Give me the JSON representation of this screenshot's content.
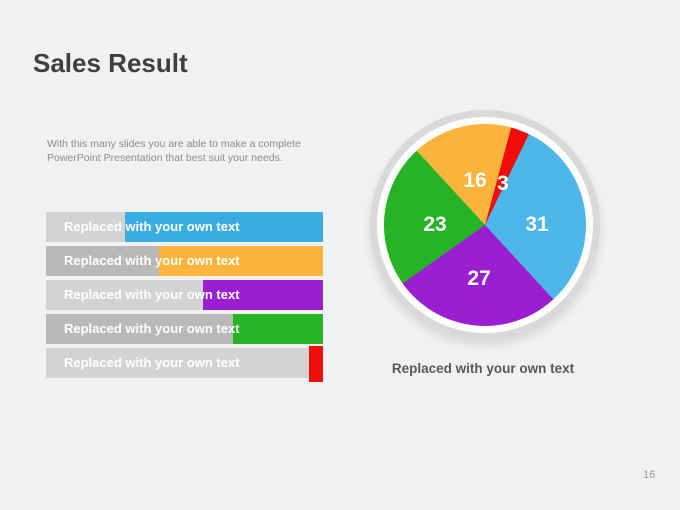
{
  "slide": {
    "title": "Sales Result",
    "page_number": "16",
    "background_color": "#f0f1f2"
  },
  "intro": {
    "text": "With this many slides you are able to make a complete PowerPoint Presentation that best suit your needs."
  },
  "bars": {
    "items": [
      {
        "label": "Replaced with your own text",
        "fill_percent": 71.5,
        "color": "#39ade2",
        "track_color": "#d3d3d3"
      },
      {
        "label": "Replaced with your own text",
        "fill_percent": 59.2,
        "color": "#fcb43d",
        "track_color": "#b9b9b9"
      },
      {
        "label": "Replaced with your own text",
        "fill_percent": 43.3,
        "color": "#9a1fd1",
        "track_color": "#d3d3d3"
      },
      {
        "label": "Replaced with your own text",
        "fill_percent": 32.5,
        "color": "#26b426",
        "track_color": "#b9b9b9"
      },
      {
        "label": "Replaced with your own text",
        "fill_percent": 5.1,
        "color": "#f20d0d",
        "track_color": "#d3d3d3"
      }
    ]
  },
  "pie": {
    "caption": "Replaced with your own text",
    "start_angle_deg": 15,
    "ring_color": "#d9d9d9",
    "segments": [
      {
        "label": "3",
        "value": 3,
        "color": "#f20d0d"
      },
      {
        "label": "31",
        "value": 31,
        "color": "#4db7e9"
      },
      {
        "label": "27",
        "value": 27,
        "color": "#9a1fd1"
      },
      {
        "label": "23",
        "value": 23,
        "color": "#26b426"
      },
      {
        "label": "16",
        "value": 16,
        "color": "#fcb43d"
      }
    ]
  },
  "chart_data": [
    {
      "type": "bar",
      "orientation": "horizontal",
      "title": "",
      "categories": [
        "Replaced with your own text",
        "Replaced with your own text",
        "Replaced with your own text",
        "Replaced with your own text",
        "Replaced with your own text"
      ],
      "values": [
        71.5,
        59.2,
        43.3,
        32.5,
        5.1
      ],
      "value_unit": "percent of track filled",
      "colors": [
        "#39ade2",
        "#fcb43d",
        "#9a1fd1",
        "#26b426",
        "#f20d0d"
      ],
      "track_colors_alternating": [
        "#d3d3d3",
        "#b9b9b9"
      ],
      "grid": false,
      "legend": false
    },
    {
      "type": "pie",
      "title": "",
      "caption": "Replaced with your own text",
      "labels": [
        "3",
        "31",
        "27",
        "23",
        "16"
      ],
      "values": [
        3,
        31,
        27,
        23,
        16
      ],
      "colors": [
        "#f20d0d",
        "#4db7e9",
        "#9a1fd1",
        "#26b426",
        "#fcb43d"
      ],
      "order": "clockwise",
      "start_angle_clockwise_from_top_deg": 15,
      "values_sum": 100,
      "data_labels": "white bold numbers inside slices",
      "legend": false
    }
  ]
}
